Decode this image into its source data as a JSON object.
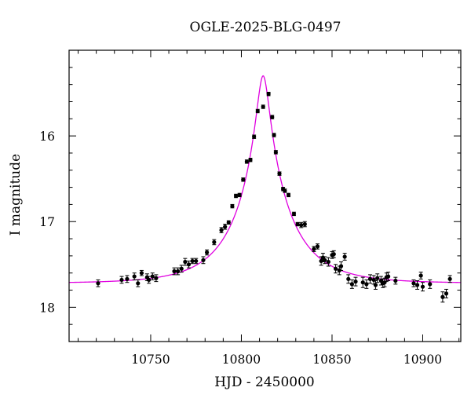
{
  "chart_data": {
    "type": "scatter",
    "title": "OGLE-2025-BLG-0497",
    "xlabel": "HJD - 2450000",
    "ylabel": "I magnitude",
    "xlim": [
      10705,
      10921
    ],
    "ylim": [
      18.4,
      15.0
    ],
    "y_inverted": true,
    "grid": false,
    "x_ticks": [
      10750,
      10800,
      10850,
      10900
    ],
    "x_tick_labels": [
      "10750",
      "10800",
      "10850",
      "10900"
    ],
    "y_ticks": [
      16,
      17,
      18
    ],
    "y_tick_labels": [
      "16",
      "17",
      "18"
    ],
    "colors": {
      "points": "#000000",
      "model": "#e000e0",
      "axes": "#000000"
    },
    "model": {
      "name": "",
      "type": "point-lens microlensing fit",
      "t0": 10812,
      "u0": 0.108,
      "tE": 30,
      "baseline_mag": 17.72
    },
    "series": [
      {
        "name": "",
        "x": [
          10721,
          10734,
          10737,
          10741,
          10743,
          10745,
          10748,
          10749,
          10751,
          10753,
          10763,
          10765,
          10767,
          10769,
          10771,
          10773,
          10775,
          10779,
          10781,
          10785,
          10789,
          10791,
          10793,
          10795,
          10797,
          10799,
          10801,
          10803,
          10805,
          10807,
          10809,
          10812,
          10815,
          10817,
          10818,
          10819,
          10821,
          10823,
          10824,
          10826,
          10829,
          10831,
          10833,
          10835,
          10840,
          10842,
          10844,
          10845,
          10846,
          10848,
          10850,
          10851,
          10852,
          10854,
          10855,
          10857,
          10859,
          10861,
          10863,
          10867,
          10869,
          10871,
          10873,
          10874,
          10875,
          10877,
          10878,
          10879,
          10880,
          10881,
          10885,
          10895,
          10897,
          10899,
          10900,
          10904,
          10911,
          10913,
          10915
        ],
        "y": [
          17.72,
          17.68,
          17.67,
          17.64,
          17.72,
          17.6,
          17.65,
          17.68,
          17.64,
          17.66,
          17.58,
          17.58,
          17.55,
          17.47,
          17.5,
          17.46,
          17.46,
          17.45,
          17.36,
          17.24,
          17.1,
          17.06,
          17.01,
          16.82,
          16.7,
          16.69,
          16.51,
          16.3,
          16.28,
          16.01,
          15.71,
          15.66,
          15.51,
          15.78,
          15.99,
          16.19,
          16.44,
          16.62,
          16.64,
          16.69,
          16.91,
          17.03,
          17.04,
          17.03,
          17.32,
          17.29,
          17.46,
          17.42,
          17.45,
          17.47,
          17.39,
          17.38,
          17.55,
          17.57,
          17.52,
          17.41,
          17.67,
          17.73,
          17.7,
          17.71,
          17.73,
          17.67,
          17.68,
          17.74,
          17.66,
          17.69,
          17.72,
          17.71,
          17.65,
          17.64,
          17.69,
          17.72,
          17.74,
          17.63,
          17.76,
          17.73,
          17.88,
          17.84,
          17.67
        ],
        "errors": [
          0.04,
          0.04,
          0.04,
          0.04,
          0.04,
          0.03,
          0.04,
          0.04,
          0.04,
          0.04,
          0.04,
          0.04,
          0.04,
          0.04,
          0.04,
          0.03,
          0.03,
          0.04,
          0.03,
          0.03,
          0.03,
          0.03,
          0.02,
          0.02,
          0.02,
          0.02,
          0.02,
          0.02,
          0.02,
          0.02,
          0.02,
          0.02,
          0.02,
          0.02,
          0.02,
          0.02,
          0.02,
          0.02,
          0.02,
          0.02,
          0.02,
          0.02,
          0.03,
          0.03,
          0.03,
          0.03,
          0.05,
          0.05,
          0.04,
          0.05,
          0.04,
          0.04,
          0.05,
          0.05,
          0.05,
          0.04,
          0.05,
          0.05,
          0.05,
          0.06,
          0.05,
          0.05,
          0.05,
          0.05,
          0.05,
          0.05,
          0.05,
          0.05,
          0.05,
          0.05,
          0.04,
          0.04,
          0.05,
          0.04,
          0.05,
          0.05,
          0.06,
          0.05,
          0.04
        ]
      }
    ]
  }
}
